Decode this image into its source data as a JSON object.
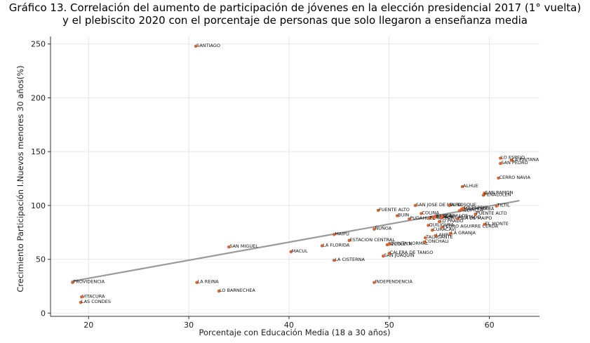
{
  "chart_data": {
    "type": "scatter",
    "title_line1": "Gráfico 13. Correlación del aumento de participación de jóvenes en la elección presidencial 2017 (1° vuelta)",
    "title_line2": "y el plebiscito 2020 con el porcentaje de personas que solo llegaron a enseñanza media",
    "xlabel": "Porcentaje con Educación Media (18 a 30 años)",
    "ylabel": "Crecimiento Participación I.Nuevos menores 30 años(%)",
    "xlim": [
      16.2,
      65.0
    ],
    "ylim": [
      -3,
      257
    ],
    "xticks": [
      20,
      30,
      40,
      50,
      60
    ],
    "yticks": [
      0,
      50,
      100,
      150,
      200,
      250
    ],
    "grid": true,
    "point_color": "#e0622a",
    "trend_color": "#9a9a9a",
    "trendline": {
      "x": [
        18.3,
        63.0
      ],
      "y": [
        29.5,
        104.5
      ]
    },
    "points": [
      {
        "name": "SANTIAGO",
        "x": 30.7,
        "y": 248
      },
      {
        "name": "PROVIDENCIA",
        "x": 18.4,
        "y": 28.5
      },
      {
        "name": "VITACURA",
        "x": 19.3,
        "y": 15
      },
      {
        "name": "LAS CONDES",
        "x": 19.2,
        "y": 10
      },
      {
        "name": "LA REINA",
        "x": 30.8,
        "y": 28.5
      },
      {
        "name": "LO BARNECHEA",
        "x": 33.0,
        "y": 20.5
      },
      {
        "name": "SAN MIGUEL",
        "x": 34.0,
        "y": 61.5
      },
      {
        "name": "MACUL",
        "x": 40.2,
        "y": 57
      },
      {
        "name": "LA FLORIDA",
        "x": 43.3,
        "y": 62.5
      },
      {
        "name": "LA CISTERNA",
        "x": 44.5,
        "y": 49
      },
      {
        "name": "MAIPU",
        "x": 44.5,
        "y": 73
      },
      {
        "name": "ESTACION CENTRAL",
        "x": 46.0,
        "y": 67.5
      },
      {
        "name": "INDEPENDENCIA",
        "x": 48.5,
        "y": 28.5
      },
      {
        "name": "ÑUÑOA",
        "x": 48.5,
        "y": 78
      },
      {
        "name": "FUENTE ALTO",
        "x": 48.9,
        "y": 95.5
      },
      {
        "name": "SAN JOAQUIN",
        "x": 49.4,
        "y": 53
      },
      {
        "name": "RECOLETA",
        "x": 49.8,
        "y": 63.5
      },
      {
        "name": "QUINTA NORMAL",
        "x": 50.0,
        "y": 64
      },
      {
        "name": "CALERA DE TANGO",
        "x": 50.0,
        "y": 55.5
      },
      {
        "name": "BUIN",
        "x": 50.8,
        "y": 90.5
      },
      {
        "name": "PUDAHUEL",
        "x": 52.0,
        "y": 87.5
      },
      {
        "name": "SAN JOSE DE MAIPO",
        "x": 52.6,
        "y": 100
      },
      {
        "name": "COLINA",
        "x": 53.2,
        "y": 92.5
      },
      {
        "name": "CONCHALI",
        "x": 53.5,
        "y": 66
      },
      {
        "name": "TALAGANTE",
        "x": 53.6,
        "y": 70
      },
      {
        "name": "QUILICURA",
        "x": 53.9,
        "y": 81.5
      },
      {
        "name": "PEÑAFLOR",
        "x": 54.0,
        "y": 88
      },
      {
        "name": "PAINE",
        "x": 54.4,
        "y": 89
      },
      {
        "name": "RENCA",
        "x": 54.6,
        "y": 89.5
      },
      {
        "name": "PADRE HURTADO",
        "x": 55.2,
        "y": 88.5
      },
      {
        "name": "CERRILLOS",
        "x": 55.3,
        "y": 90
      },
      {
        "name": "LO PRADO",
        "x": 55.0,
        "y": 85
      },
      {
        "name": "CURACAVI",
        "x": 54.3,
        "y": 77
      },
      {
        "name": "LAMPA",
        "x": 54.6,
        "y": 72
      },
      {
        "name": "LA GRANJA",
        "x": 56.1,
        "y": 74
      },
      {
        "name": "PEDRO AGUIRRE CERDA",
        "x": 55.3,
        "y": 80
      },
      {
        "name": "EL BOSQUE",
        "x": 56.0,
        "y": 100
      },
      {
        "name": "ISLA DE MAIPO",
        "x": 56.8,
        "y": 87.5
      },
      {
        "name": "MELIPILLA",
        "x": 57.0,
        "y": 95
      },
      {
        "name": "HUECHURABA",
        "x": 57.2,
        "y": 96.5
      },
      {
        "name": "LO ESPEJO",
        "x": 57.4,
        "y": 97.5
      },
      {
        "name": "PUENTE ALTO",
        "x": 58.6,
        "y": 92
      },
      {
        "name": "EL MONTE",
        "x": 59.5,
        "y": 82.5
      },
      {
        "name": "ALHUE",
        "x": 57.3,
        "y": 117.5
      },
      {
        "name": "SAN RAMON",
        "x": 59.5,
        "y": 111.5
      },
      {
        "name": "PEÑALOLEN",
        "x": 59.4,
        "y": 109.5
      },
      {
        "name": "TILTIL",
        "x": 60.7,
        "y": 99.5
      },
      {
        "name": "CERRO NAVIA",
        "x": 60.9,
        "y": 125.5
      },
      {
        "name": "LO ESPEJO",
        "x": 61.1,
        "y": 144
      },
      {
        "name": "SAN PEDRO",
        "x": 61.1,
        "y": 139
      },
      {
        "name": "LA PINTANA",
        "x": 62.2,
        "y": 142
      }
    ]
  }
}
